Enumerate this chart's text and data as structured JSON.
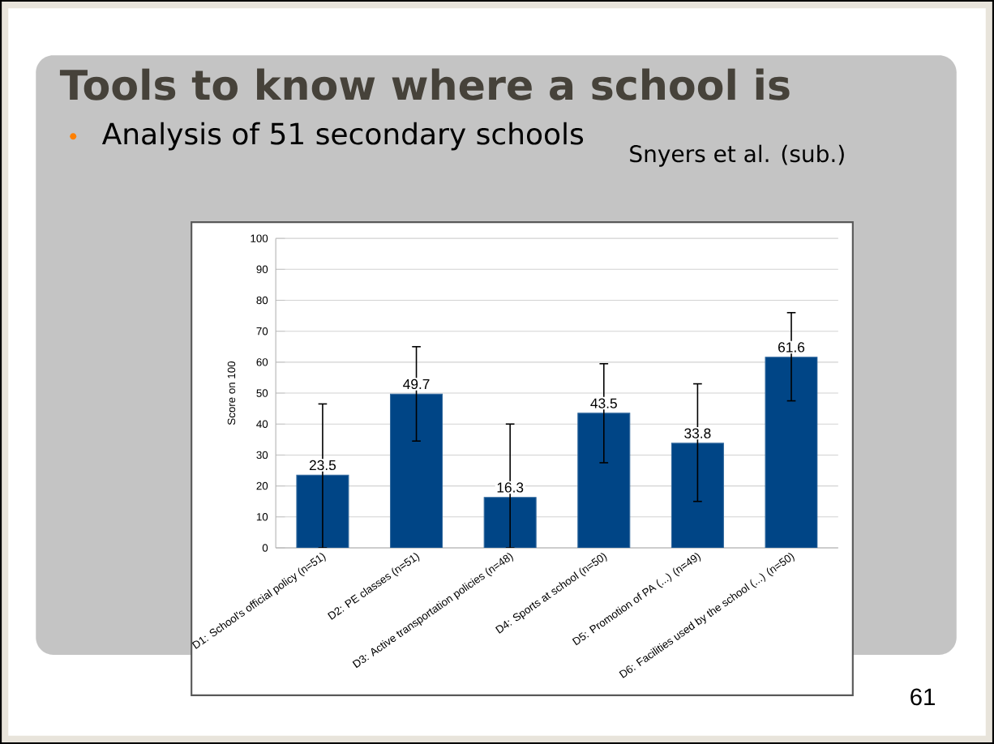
{
  "chart_data": {
    "type": "bar",
    "title": "Tools to know where a school is",
    "subtitle": "Analysis of 51 secondary schools",
    "annotations": [
      "Snyers et al. (sub.)",
      "61"
    ],
    "ylabel": "Score on 100",
    "categories": [
      "D1: School's official policy (n=51)",
      "D2: PE classes (n=51)",
      "D3: Active transportation policies (n=48)",
      "D4: Sports at school (n=50)",
      "D5: Promotion of PA (...) (n=49)",
      "D6: Facilities used by the school (...) (n=50)"
    ],
    "values": [
      23.5,
      49.7,
      16.3,
      43.5,
      33.8,
      61.6
    ],
    "errors": [
      [
        0,
        46.5
      ],
      [
        34.5,
        65
      ],
      [
        0,
        40
      ],
      [
        27.5,
        59.5
      ],
      [
        15,
        53
      ],
      [
        47.5,
        76
      ]
    ],
    "color": "#004586",
    "data_labels": true,
    "grid": "y",
    "ylim": [
      0,
      100
    ],
    "yticks": [
      0,
      10,
      20,
      30,
      40,
      50,
      60,
      70,
      80,
      90,
      100
    ]
  }
}
